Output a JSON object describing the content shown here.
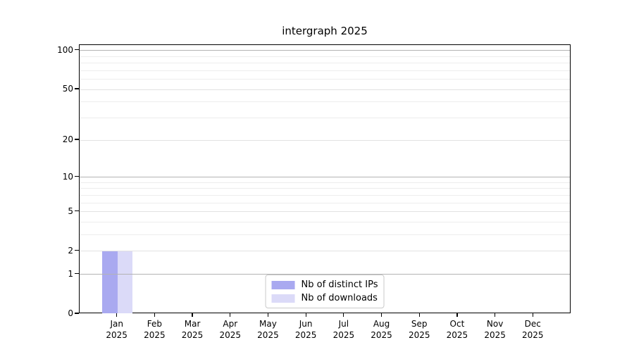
{
  "figure": {
    "background": "#ffffff",
    "spine_color": "#000000"
  },
  "chart_data": {
    "type": "bar",
    "title": "intergraph 2025",
    "xlabel": "",
    "ylabel": "",
    "scale": "log1p",
    "ylim": [
      0,
      110
    ],
    "grid": true,
    "legend_position": "lower center",
    "categories": [
      "Jan",
      "Feb",
      "Mar",
      "Apr",
      "May",
      "Jun",
      "Jul",
      "Aug",
      "Sep",
      "Oct",
      "Nov",
      "Dec"
    ],
    "x_year_label": "2025",
    "y_major_ticks": [
      0,
      1,
      2,
      5,
      10,
      20,
      50,
      100
    ],
    "y_minor_gridlines": [
      3,
      4,
      6,
      7,
      8,
      9,
      30,
      40,
      60,
      70,
      80,
      90
    ],
    "y_emphasis_gridlines": [
      1,
      10,
      100
    ],
    "series": [
      {
        "name": "Nb of distinct IPs",
        "color": "#a9a9f0",
        "values": [
          2,
          0,
          0,
          0,
          0,
          0,
          0,
          0,
          0,
          0,
          0,
          0
        ]
      },
      {
        "name": "Nb of downloads",
        "color": "#dbdaf8",
        "values": [
          2,
          0,
          0,
          0,
          0,
          0,
          0,
          0,
          0,
          0,
          0,
          0
        ]
      }
    ]
  },
  "colors": {
    "grid_emphasis": "#b3b3b3",
    "grid_labeled": "#e2e2e2",
    "grid_minor": "#ededed",
    "tick_color": "#000000",
    "legend_border": "#c9c9c9"
  }
}
